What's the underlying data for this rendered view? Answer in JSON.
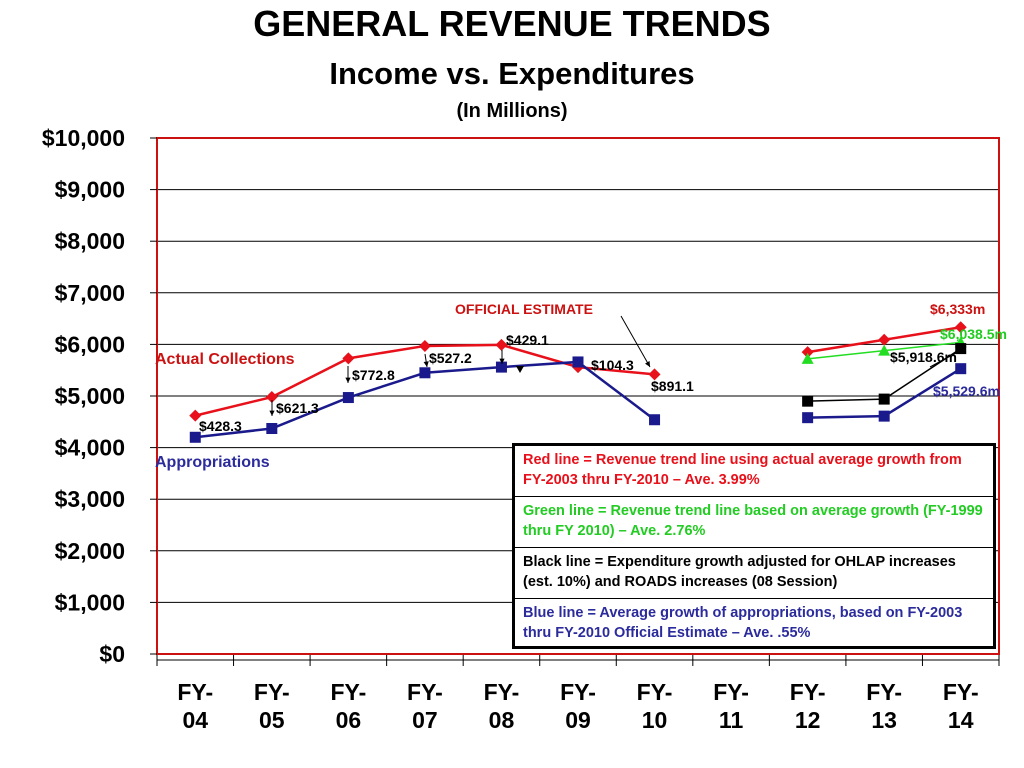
{
  "chart_data": {
    "type": "line",
    "title": "GENERAL REVENUE TRENDS",
    "subtitle": "Income vs. Expenditures",
    "unit_note": "(In Millions)",
    "categories": [
      "FY-04",
      "FY-05",
      "FY-06",
      "FY-07",
      "FY-08",
      "FY-09",
      "FY-10",
      "FY-11",
      "FY-12",
      "FY-13",
      "FY-14"
    ],
    "y_tick_labels": [
      "$0",
      "$1,000",
      "$2,000",
      "$3,000",
      "$4,000",
      "$5,000",
      "$6,000",
      "$7,000",
      "$8,000",
      "$9,000",
      "$10,000"
    ],
    "ylim": [
      0,
      10000
    ],
    "grid": true,
    "series": [
      {
        "key": "actual",
        "color": "#e8101a",
        "marker": "diamond",
        "values": [
          4620,
          4980,
          5730,
          5970,
          5990,
          5560,
          5420,
          null,
          5850,
          6090,
          6333
        ]
      },
      {
        "key": "green",
        "color": "#22dd22",
        "marker": "triangle",
        "values": [
          null,
          null,
          null,
          null,
          null,
          null,
          null,
          null,
          5720,
          5880,
          6038.5
        ]
      },
      {
        "key": "black",
        "color": "#000000",
        "marker": "square",
        "values": [
          null,
          null,
          null,
          null,
          null,
          null,
          null,
          null,
          4900,
          4940,
          5918.6
        ]
      },
      {
        "key": "appropriations",
        "color": "#1a1a8c",
        "marker": "square",
        "values": [
          4200,
          4370,
          4970,
          5450,
          5560,
          5660,
          4540,
          null,
          4580,
          4610,
          5529.6
        ]
      }
    ],
    "series_labels": {
      "actual": "Actual Collections",
      "appropriations": "Appropriations"
    },
    "annotations": {
      "official_estimate": "OFFICIAL ESTIMATE",
      "gap_fy04": "$428.3",
      "gap_fy05": "$621.3",
      "gap_fy06": "$772.8",
      "gap_fy07": "$527.2",
      "gap_fy08": "$429.1",
      "gap_fy09": "$104.3",
      "gap_fy10": "$891.1",
      "end_red": "$6,333m",
      "end_green": "$6,038.5m",
      "end_black": "$5,918.6m",
      "end_blue": "$5,529.6m"
    },
    "legend": [
      {
        "color": "#e8101a",
        "text": "Red line = Revenue trend line using actual average growth from FY-2003 thru FY-2010 – Ave. 3.99%"
      },
      {
        "color": "#22cc22",
        "text": "Green line = Revenue trend line based on average growth (FY-1999 thru FY 2010) – Ave. 2.76%"
      },
      {
        "color": "#000000",
        "text": "Black line = Expenditure growth adjusted for OHLAP increases (est. 10%) and ROADS increases (08 Session)"
      },
      {
        "color": "#2b2b9c",
        "text": "Blue line = Average growth of appropriations, based on FY-2003 thru FY-2010 Official Estimate – Ave. .55%"
      }
    ]
  }
}
